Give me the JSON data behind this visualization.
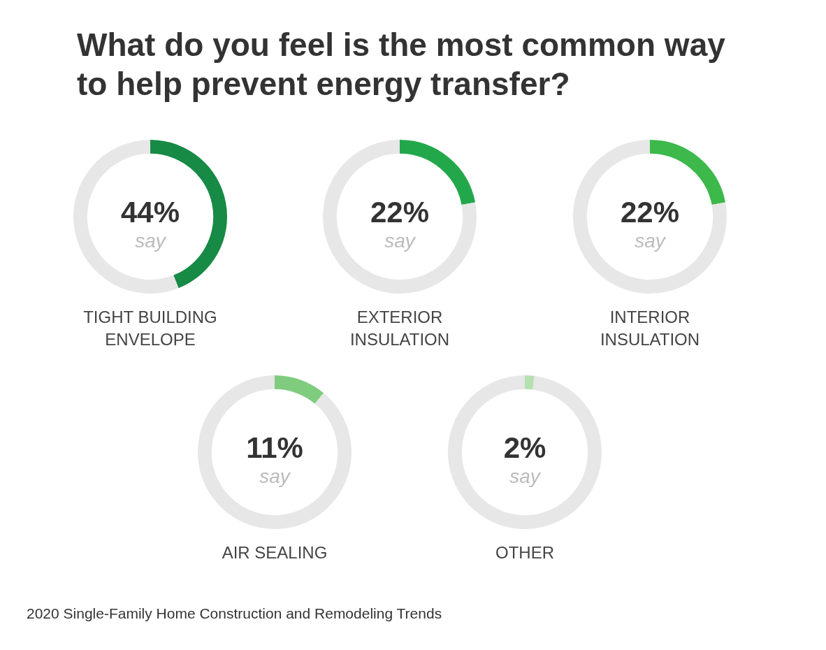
{
  "chart_data": [
    {
      "type": "other",
      "title": "What do you feel is the most common way to help prevent energy transfer?",
      "annotations": [
        "2020 Single-Family Home Construction and Remodeling Trends"
      ]
    },
    {
      "type": "donut",
      "title": "TIGHT BUILDING ENVELOPE",
      "categories": [
        null,
        null
      ],
      "values": [
        44,
        56
      ],
      "colors": [
        "#178a45",
        "#e6e7e6"
      ],
      "value_labels": [
        "44%",
        null
      ],
      "annotations": [
        "say"
      ],
      "legend": false
    },
    {
      "type": "donut",
      "title": "EXTERIOR INSULATION",
      "categories": [
        null,
        null
      ],
      "values": [
        22,
        78
      ],
      "colors": [
        "#22a84a",
        "#e6e7e6"
      ],
      "value_labels": [
        "22%",
        null
      ],
      "annotations": [
        "say"
      ],
      "legend": false
    },
    {
      "type": "donut",
      "title": "INTERIOR INSULATION",
      "categories": [
        null,
        null
      ],
      "values": [
        22,
        78
      ],
      "colors": [
        "#3cb94a",
        "#e6e7e6"
      ],
      "value_labels": [
        "22%",
        null
      ],
      "annotations": [
        "say"
      ],
      "legend": false
    },
    {
      "type": "donut",
      "title": "AIR SEALING",
      "categories": [
        null,
        null
      ],
      "values": [
        11,
        89
      ],
      "colors": [
        "#7fcc7f",
        "#e6e7e6"
      ],
      "value_labels": [
        "11%",
        null
      ],
      "annotations": [
        "say"
      ],
      "legend": false
    },
    {
      "type": "donut",
      "title": "OTHER",
      "categories": [
        null,
        null
      ],
      "values": [
        2,
        98
      ],
      "colors": [
        "#b5e0b0",
        "#e6e7e6"
      ],
      "value_labels": [
        "2%",
        null
      ],
      "annotations": [
        "say"
      ],
      "legend": false
    }
  ]
}
